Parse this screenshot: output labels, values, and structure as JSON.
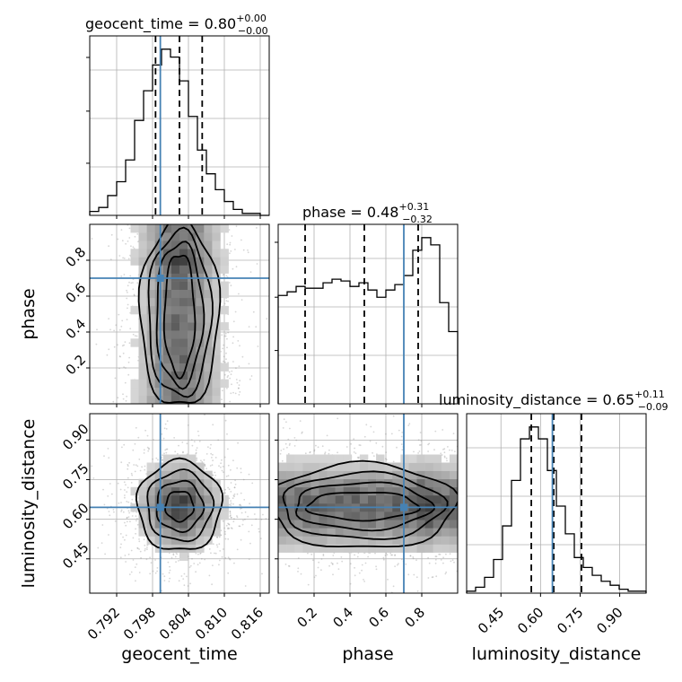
{
  "chart_data": {
    "type": "corner",
    "parameters": [
      "geocent_time",
      "phase",
      "luminosity_distance"
    ],
    "colors": {
      "truth": "#4682b4",
      "histogram": "#000000",
      "contour": "#000000",
      "grid": "#b0b0b0"
    },
    "diagonal": [
      {
        "parameter": "geocent_time",
        "title": {
          "name": "geocent_time",
          "median": "0.80",
          "plus": "+0.00",
          "minus": "−0.00"
        },
        "range": [
          0.7875,
          0.8175
        ],
        "truth": 0.7993,
        "quantiles": [
          0.7985,
          0.8025,
          0.8063
        ],
        "bins": 20,
        "counts": [
          2,
          4,
          10,
          17,
          28,
          48,
          63,
          76,
          84,
          80,
          68,
          50,
          33,
          21,
          13,
          7,
          3,
          1,
          1,
          0
        ]
      },
      {
        "parameter": "phase",
        "title": {
          "name": "phase",
          "median": "0.48",
          "plus": "+0.31",
          "minus": "−0.32"
        },
        "range": [
          0.0,
          1.0
        ],
        "truth": 0.7,
        "quantiles": [
          0.15,
          0.48,
          0.78
        ],
        "bins": 20,
        "counts": [
          60,
          62,
          65,
          64,
          64,
          67,
          69,
          68,
          65,
          67,
          63,
          59,
          63,
          66,
          71,
          85,
          92,
          88,
          56,
          40
        ]
      },
      {
        "parameter": "luminosity_distance",
        "title": {
          "name": "luminosity_distance",
          "median": "0.65",
          "plus": "+0.11",
          "minus": "−0.09"
        },
        "range": [
          0.32,
          1.0
        ],
        "truth": 0.645,
        "quantiles": [
          0.565,
          0.65,
          0.755
        ],
        "bins": 20,
        "counts": [
          1,
          3,
          8,
          17,
          34,
          57,
          78,
          84,
          78,
          62,
          44,
          30,
          18,
          13,
          9,
          6,
          4,
          2,
          1,
          1
        ]
      }
    ],
    "pairs": [
      {
        "x": "geocent_time",
        "y": "phase",
        "truth": [
          0.7993,
          0.7
        ],
        "ylim": [
          0.0,
          1.0
        ]
      },
      {
        "x": "geocent_time",
        "y": "luminosity_distance",
        "truth": [
          0.7993,
          0.645
        ],
        "ylim": [
          0.32,
          1.0
        ]
      },
      {
        "x": "phase",
        "y": "luminosity_distance",
        "truth": [
          0.7,
          0.645
        ],
        "ylim": [
          0.32,
          1.0
        ]
      }
    ],
    "ticks": {
      "geocent_time": [
        "0.792",
        "0.798",
        "0.804",
        "0.810",
        "0.816"
      ],
      "phase": [
        "0.2",
        "0.4",
        "0.6",
        "0.8"
      ],
      "luminosity_distance": [
        "0.45",
        "0.60",
        "0.75",
        "0.90"
      ]
    },
    "tick_values": {
      "geocent_time": [
        0.792,
        0.798,
        0.804,
        0.81,
        0.816
      ],
      "phase": [
        0.2,
        0.4,
        0.6,
        0.8
      ],
      "luminosity_distance": [
        0.45,
        0.6,
        0.75,
        0.9
      ]
    },
    "xlabels": [
      "geocent_time",
      "phase",
      "luminosity_distance"
    ],
    "ylabels": [
      "",
      "phase",
      "luminosity_distance"
    ],
    "grid": true
  }
}
